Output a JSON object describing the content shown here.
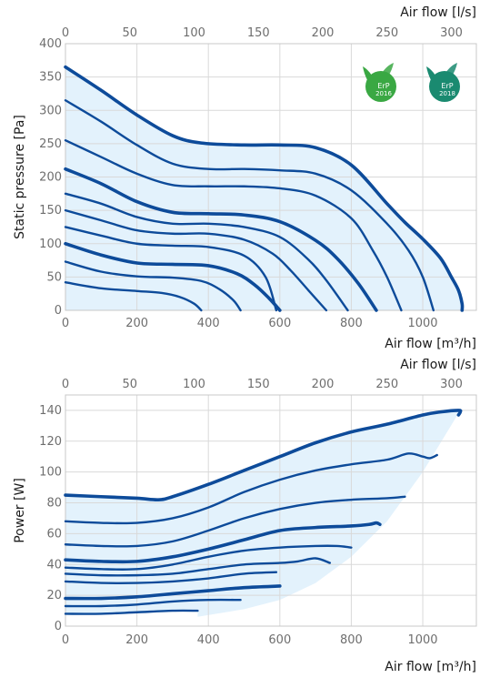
{
  "chart_data": [
    {
      "type": "line",
      "xlabel": "Air flow [m³/h]",
      "xlabel_top": "Air flow [l/s]",
      "ylabel": "Static pressure [Pa]",
      "xlim": [
        0,
        1150
      ],
      "ylim": [
        0,
        400
      ],
      "x_ticks": [
        0,
        200,
        400,
        600,
        800,
        1000
      ],
      "x_top_ticks": [
        0,
        50,
        100,
        150,
        200,
        250,
        300
      ],
      "y_ticks": [
        0,
        50,
        100,
        150,
        200,
        250,
        300,
        350,
        400
      ],
      "grid": true,
      "badges": [
        {
          "label": "ErP",
          "year": "2016",
          "color": "#3aa843"
        },
        {
          "label": "ErP",
          "year": "2018",
          "color": "#1a8a70"
        }
      ],
      "series": [
        {
          "width": 3.6,
          "x": [
            0,
            100,
            200,
            300,
            380,
            500,
            600,
            700,
            800,
            900,
            950,
            1000,
            1050,
            1080,
            1100,
            1110,
            1110
          ],
          "y": [
            365,
            330,
            293,
            262,
            251,
            248,
            248,
            244,
            218,
            160,
            132,
            107,
            78,
            50,
            30,
            10,
            0
          ]
        },
        {
          "width": 2.4,
          "x": [
            0,
            100,
            200,
            300,
            400,
            500,
            600,
            700,
            800,
            900,
            960,
            1000,
            1030
          ],
          "y": [
            315,
            283,
            248,
            220,
            212,
            212,
            210,
            205,
            180,
            130,
            90,
            50,
            0
          ]
        },
        {
          "width": 2.4,
          "x": [
            0,
            100,
            200,
            300,
            400,
            500,
            600,
            700,
            800,
            860,
            900,
            940
          ],
          "y": [
            255,
            230,
            205,
            188,
            186,
            186,
            183,
            172,
            138,
            90,
            50,
            0
          ]
        },
        {
          "width": 3.6,
          "x": [
            0,
            100,
            200,
            300,
            400,
            500,
            600,
            700,
            760,
            820,
            870
          ],
          "y": [
            212,
            190,
            163,
            147,
            145,
            143,
            133,
            105,
            78,
            40,
            0
          ]
        },
        {
          "width": 2.4,
          "x": [
            0,
            100,
            200,
            300,
            400,
            500,
            600,
            680,
            730,
            790
          ],
          "y": [
            175,
            160,
            140,
            130,
            130,
            125,
            110,
            76,
            45,
            0
          ]
        },
        {
          "width": 2.4,
          "x": [
            0,
            100,
            200,
            300,
            400,
            500,
            580,
            630,
            680,
            730
          ],
          "y": [
            150,
            135,
            120,
            115,
            115,
            106,
            85,
            60,
            30,
            0
          ]
        },
        {
          "width": 2.4,
          "x": [
            0,
            100,
            200,
            300,
            400,
            500,
            560,
            590
          ],
          "y": [
            125,
            112,
            100,
            97,
            95,
            82,
            50,
            0
          ]
        },
        {
          "width": 3.6,
          "x": [
            0,
            100,
            200,
            300,
            400,
            480,
            530,
            570,
            600
          ],
          "y": [
            100,
            83,
            71,
            69,
            67,
            55,
            38,
            18,
            0
          ]
        },
        {
          "width": 2.4,
          "x": [
            0,
            100,
            200,
            300,
            380,
            430,
            470,
            490
          ],
          "y": [
            73,
            58,
            51,
            49,
            44,
            32,
            15,
            0
          ]
        },
        {
          "width": 2.4,
          "x": [
            0,
            100,
            200,
            270,
            320,
            360,
            380
          ],
          "y": [
            42,
            33,
            29,
            26,
            20,
            10,
            0
          ]
        }
      ]
    },
    {
      "type": "line",
      "xlabel": "Air flow [m³/h]",
      "xlabel_top": "Air flow [l/s]",
      "ylabel": "Power [W]",
      "xlim": [
        0,
        1150
      ],
      "ylim": [
        0,
        150
      ],
      "x_ticks": [
        0,
        200,
        400,
        600,
        800,
        1000
      ],
      "x_top_ticks": [
        0,
        50,
        100,
        150,
        200,
        250,
        300
      ],
      "y_ticks": [
        0,
        20,
        40,
        60,
        80,
        100,
        120,
        140
      ],
      "grid": true,
      "series": [
        {
          "width": 3.6,
          "x": [
            0,
            100,
            200,
            260,
            300,
            400,
            500,
            600,
            700,
            800,
            900,
            1000,
            1050,
            1100,
            1105,
            1100
          ],
          "y": [
            85,
            84,
            83,
            82,
            84,
            92,
            101,
            110,
            119,
            126,
            131,
            137,
            139,
            140,
            139,
            137
          ]
        },
        {
          "width": 2.4,
          "x": [
            0,
            100,
            200,
            300,
            400,
            500,
            600,
            700,
            800,
            900,
            960,
            1000,
            1020,
            1040
          ],
          "y": [
            68,
            67,
            67,
            70,
            77,
            87,
            95,
            101,
            105,
            108,
            112,
            110,
            109,
            111
          ]
        },
        {
          "width": 2.4,
          "x": [
            0,
            100,
            200,
            300,
            400,
            500,
            600,
            700,
            800,
            900,
            950
          ],
          "y": [
            53,
            52,
            52,
            55,
            62,
            70,
            76,
            80,
            82,
            83,
            84
          ]
        },
        {
          "width": 3.6,
          "x": [
            0,
            100,
            200,
            300,
            400,
            500,
            600,
            700,
            800,
            850,
            870,
            880
          ],
          "y": [
            43,
            42,
            42,
            45,
            50,
            56,
            62,
            64,
            65,
            66,
            67,
            66
          ]
        },
        {
          "width": 2.4,
          "x": [
            0,
            100,
            200,
            300,
            400,
            500,
            600,
            700,
            760,
            800
          ],
          "y": [
            38,
            37,
            37,
            40,
            45,
            49,
            51,
            52,
            52,
            51
          ]
        },
        {
          "width": 2.4,
          "x": [
            0,
            100,
            200,
            300,
            400,
            500,
            600,
            650,
            700,
            740
          ],
          "y": [
            34,
            33,
            33,
            34,
            37,
            40,
            41,
            42,
            44,
            41
          ]
        },
        {
          "width": 2.4,
          "x": [
            0,
            100,
            200,
            300,
            400,
            500,
            590
          ],
          "y": [
            29,
            28,
            28,
            29,
            31,
            34,
            35
          ]
        },
        {
          "width": 3.6,
          "x": [
            0,
            100,
            200,
            300,
            400,
            500,
            600
          ],
          "y": [
            18,
            18,
            19,
            21,
            23,
            25,
            26
          ]
        },
        {
          "width": 2.4,
          "x": [
            0,
            100,
            200,
            300,
            400,
            490
          ],
          "y": [
            13,
            13,
            14,
            16,
            17,
            17
          ]
        },
        {
          "width": 2.4,
          "x": [
            0,
            100,
            200,
            300,
            370
          ],
          "y": [
            8,
            8,
            9,
            10,
            10
          ]
        }
      ]
    }
  ]
}
